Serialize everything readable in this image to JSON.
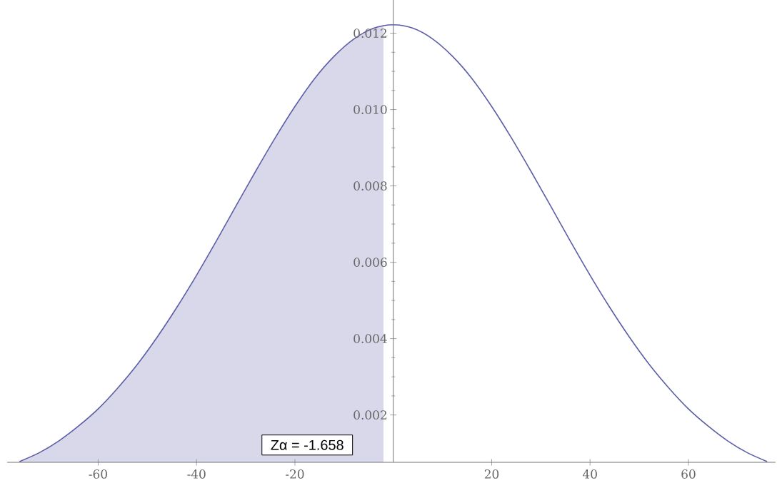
{
  "chart_data": {
    "type": "line",
    "xlim": [
      -78.5,
      77.7
    ],
    "ylim": [
      0.00076,
      0.01287
    ],
    "xticks": [
      -60,
      -40,
      -20,
      20,
      40,
      60
    ],
    "yticks": [
      0.002,
      0.004,
      0.006,
      0.008,
      {
        "value": 0.01,
        "label": "0.010"
      },
      0.012
    ],
    "series": [
      {
        "type": "area",
        "color": "#d8d8ea",
        "x": [
          -76,
          -72,
          -68,
          -64,
          -60,
          -56,
          -52,
          -48,
          -44,
          -40,
          -36,
          -32,
          -28,
          -24,
          -20,
          -16,
          -12,
          -8,
          -4,
          -2
        ],
        "values": [
          0.00078,
          0.00101,
          0.00132,
          0.00171,
          0.00216,
          0.00271,
          0.00333,
          0.00404,
          0.00482,
          0.00566,
          0.00655,
          0.00747,
          0.00838,
          0.00926,
          0.01008,
          0.01081,
          0.0114,
          0.01185,
          0.01213,
          0.0122
        ]
      },
      {
        "type": "line",
        "color": "#5b5ea6",
        "x": [
          -76,
          -72,
          -68,
          -64,
          -60,
          -56,
          -52,
          -48,
          -44,
          -40,
          -36,
          -32,
          -28,
          -24,
          -20,
          -16,
          -12,
          -8,
          -4,
          0,
          4,
          8,
          12,
          16,
          20,
          24,
          28,
          32,
          36,
          40,
          44,
          48,
          52,
          56,
          60,
          64,
          68,
          72,
          76
        ],
        "values": [
          0.00078,
          0.00101,
          0.00132,
          0.00171,
          0.00216,
          0.00271,
          0.00333,
          0.00404,
          0.00482,
          0.00566,
          0.00655,
          0.00747,
          0.00838,
          0.00926,
          0.01008,
          0.01081,
          0.0114,
          0.01185,
          0.01213,
          0.01222,
          0.01213,
          0.01185,
          0.0114,
          0.01081,
          0.01008,
          0.00926,
          0.00838,
          0.00747,
          0.00655,
          0.00566,
          0.00482,
          0.00404,
          0.00333,
          0.00271,
          0.00216,
          0.00171,
          0.00132,
          0.00101,
          0.00078
        ]
      }
    ],
    "annotations": [
      "Zα = -1.658"
    ]
  }
}
